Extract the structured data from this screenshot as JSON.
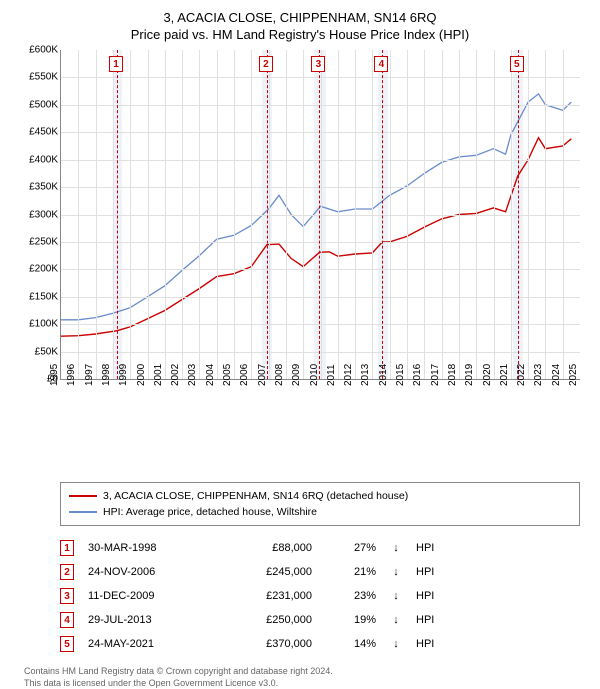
{
  "title": "3, ACACIA CLOSE, CHIPPENHAM, SN14 6RQ",
  "subtitle": "Price paid vs. HM Land Registry's House Price Index (HPI)",
  "chart": {
    "type": "line",
    "background_color": "#ffffff",
    "grid_color": "#e0e0e0",
    "axis_color": "#888888",
    "xlim": [
      1995,
      2025
    ],
    "ylim": [
      0,
      600000
    ],
    "ytick_step": 50000,
    "ytick_prefix": "£",
    "ytick_suffix": "K",
    "ytick_divisor": 1000,
    "xlabels": [
      1995,
      1996,
      1997,
      1998,
      1999,
      2000,
      2001,
      2002,
      2003,
      2004,
      2005,
      2006,
      2007,
      2008,
      2009,
      2010,
      2011,
      2012,
      2013,
      2014,
      2015,
      2016,
      2017,
      2018,
      2019,
      2020,
      2021,
      2022,
      2023,
      2024,
      2025
    ],
    "marker_band_color": "#e8ecf6",
    "marker_dash_color": "#cc0000",
    "marker_box_border": "#cc0000",
    "marker_box_text": "#cc0000",
    "label_fontsize": 10,
    "title_fontsize": 13
  },
  "series": {
    "hpi": {
      "label": "HPI: Average price, detached house, Wiltshire",
      "color": "#6a8ccc",
      "width": 1.3,
      "points": [
        [
          1995,
          108000
        ],
        [
          1996,
          108000
        ],
        [
          1997,
          112000
        ],
        [
          1998,
          120000
        ],
        [
          1999,
          130000
        ],
        [
          2000,
          150000
        ],
        [
          2001,
          170000
        ],
        [
          2002,
          198000
        ],
        [
          2003,
          225000
        ],
        [
          2004,
          255000
        ],
        [
          2005,
          262000
        ],
        [
          2006,
          280000
        ],
        [
          2007,
          310000
        ],
        [
          2007.6,
          335000
        ],
        [
          2008.3,
          300000
        ],
        [
          2009,
          278000
        ],
        [
          2009.6,
          300000
        ],
        [
          2010,
          315000
        ],
        [
          2011,
          305000
        ],
        [
          2012,
          310000
        ],
        [
          2013,
          310000
        ],
        [
          2014,
          335000
        ],
        [
          2015,
          352000
        ],
        [
          2016,
          375000
        ],
        [
          2017,
          395000
        ],
        [
          2018,
          405000
        ],
        [
          2019,
          408000
        ],
        [
          2020,
          420000
        ],
        [
          2020.7,
          410000
        ],
        [
          2021,
          445000
        ],
        [
          2022,
          505000
        ],
        [
          2022.6,
          520000
        ],
        [
          2023,
          500000
        ],
        [
          2024,
          490000
        ],
        [
          2024.5,
          505000
        ]
      ]
    },
    "address": {
      "label": "3, ACACIA CLOSE, CHIPPENHAM, SN14 6RQ (detached house)",
      "color": "#cc0000",
      "width": 1.4,
      "points": [
        [
          1995,
          78000
        ],
        [
          1996,
          79000
        ],
        [
          1997,
          82000
        ],
        [
          1998.24,
          88000
        ],
        [
          1999,
          95000
        ],
        [
          2000,
          110000
        ],
        [
          2001,
          125000
        ],
        [
          2002,
          145000
        ],
        [
          2003,
          165000
        ],
        [
          2004,
          187000
        ],
        [
          2005,
          192000
        ],
        [
          2006,
          205000
        ],
        [
          2006.9,
          245000
        ],
        [
          2007.6,
          246000
        ],
        [
          2008.3,
          220000
        ],
        [
          2009,
          205000
        ],
        [
          2009.94,
          231000
        ],
        [
          2010.5,
          232000
        ],
        [
          2011,
          224000
        ],
        [
          2012,
          228000
        ],
        [
          2013,
          230000
        ],
        [
          2013.58,
          250000
        ],
        [
          2014,
          250000
        ],
        [
          2015,
          260000
        ],
        [
          2016,
          277000
        ],
        [
          2017,
          292000
        ],
        [
          2018,
          300000
        ],
        [
          2019,
          302000
        ],
        [
          2020,
          312000
        ],
        [
          2020.7,
          305000
        ],
        [
          2021.4,
          370000
        ],
        [
          2022,
          400000
        ],
        [
          2022.6,
          440000
        ],
        [
          2023,
          420000
        ],
        [
          2024,
          425000
        ],
        [
          2024.5,
          438000
        ]
      ]
    }
  },
  "markers": [
    {
      "n": "1",
      "x": 1998.24,
      "band": [
        1998.0,
        1998.5
      ]
    },
    {
      "n": "2",
      "x": 2006.9,
      "band": [
        2006.6,
        2007.2
      ]
    },
    {
      "n": "3",
      "x": 2009.94,
      "band": [
        2009.6,
        2010.3
      ]
    },
    {
      "n": "4",
      "x": 2013.58,
      "band": [
        2013.3,
        2013.9
      ]
    },
    {
      "n": "5",
      "x": 2021.4,
      "band": [
        2021.1,
        2021.7
      ]
    }
  ],
  "legend": [
    {
      "color": "#cc0000",
      "key": "series.address.label"
    },
    {
      "color": "#6a8ccc",
      "key": "series.hpi.label"
    }
  ],
  "sales": [
    {
      "n": "1",
      "date": "30-MAR-1998",
      "price": "£88,000",
      "delta": "27%",
      "arrow": "↓",
      "vs": "HPI"
    },
    {
      "n": "2",
      "date": "24-NOV-2006",
      "price": "£245,000",
      "delta": "21%",
      "arrow": "↓",
      "vs": "HPI"
    },
    {
      "n": "3",
      "date": "11-DEC-2009",
      "price": "£231,000",
      "delta": "23%",
      "arrow": "↓",
      "vs": "HPI"
    },
    {
      "n": "4",
      "date": "29-JUL-2013",
      "price": "£250,000",
      "delta": "19%",
      "arrow": "↓",
      "vs": "HPI"
    },
    {
      "n": "5",
      "date": "24-MAY-2021",
      "price": "£370,000",
      "delta": "14%",
      "arrow": "↓",
      "vs": "HPI"
    }
  ],
  "footnote": {
    "line1": "Contains HM Land Registry data © Crown copyright and database right 2024.",
    "line2": "This data is licensed under the Open Government Licence v3.0."
  }
}
